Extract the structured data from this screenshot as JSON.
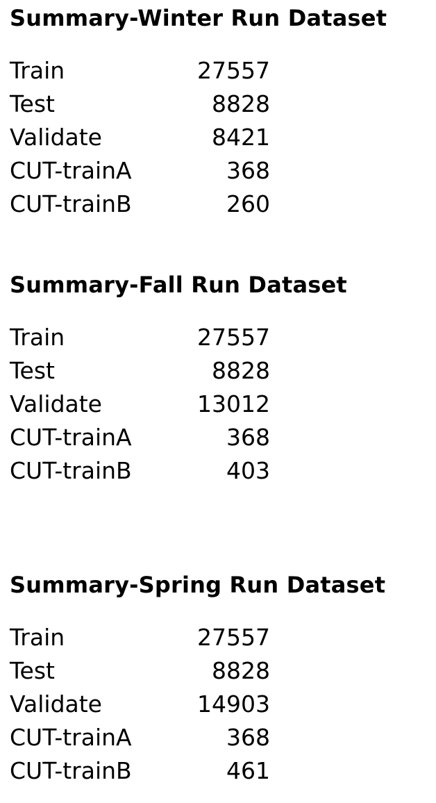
{
  "sections": [
    {
      "title": "Summary-Winter Run Dataset",
      "rows": [
        {
          "label": "Train",
          "value": "27557"
        },
        {
          "label": "Test",
          "value": "8828"
        },
        {
          "label": "Validate",
          "value": "8421"
        },
        {
          "label": "CUT-trainA",
          "value": "368"
        },
        {
          "label": "CUT-trainB",
          "value": "260"
        }
      ]
    },
    {
      "title": "Summary-Fall Run Dataset",
      "rows": [
        {
          "label": "Train",
          "value": "27557"
        },
        {
          "label": "Test",
          "value": "8828"
        },
        {
          "label": "Validate",
          "value": "13012"
        },
        {
          "label": "CUT-trainA",
          "value": "368"
        },
        {
          "label": "CUT-trainB",
          "value": "403"
        }
      ]
    },
    {
      "title": "Summary-Spring Run Dataset",
      "rows": [
        {
          "label": "Train",
          "value": "27557"
        },
        {
          "label": "Test",
          "value": "8828"
        },
        {
          "label": "Validate",
          "value": "14903"
        },
        {
          "label": "CUT-trainA",
          "value": "368"
        },
        {
          "label": "CUT-trainB",
          "value": "461"
        }
      ]
    }
  ]
}
